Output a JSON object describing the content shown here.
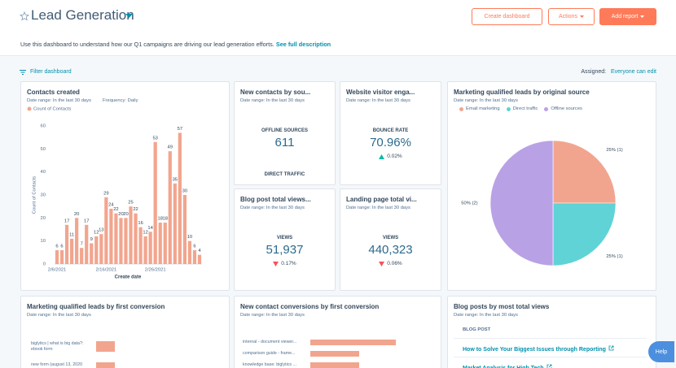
{
  "header": {
    "title": "Lead Generation",
    "buttons": [
      "Create dashboard",
      "Actions",
      "Add report"
    ],
    "description": "Use this dashboard to understand how our Q1 campaigns are driving our lead generation efforts.",
    "description_link": "See full description"
  },
  "toolbar": {
    "filter": "Filter dashboard",
    "assigned_label": "Assigned:",
    "assigned_value": "Everyone can edit"
  },
  "cards": [
    {
      "title": "Contacts created",
      "date_range": "Date range: In the last 30 days",
      "frequency": "Frequency: Daily",
      "chart_data": {
        "type": "bar",
        "categories": [
          "2/6/2021",
          null,
          null,
          null,
          null,
          null,
          null,
          null,
          null,
          null,
          "2/16/2021",
          null,
          null,
          null,
          null,
          null,
          null,
          null,
          null,
          null,
          "2/26/2021",
          null,
          null,
          null,
          null,
          null,
          null,
          null,
          null,
          null
        ],
        "series": [
          {
            "name": "Count of Contacts",
            "color": "#f2a58e",
            "values": [
              6,
              6,
              17,
              11,
              20,
              7,
              17,
              9,
              12,
              13,
              29,
              24,
              22,
              20,
              20,
              25,
              22,
              16,
              12,
              14,
              53,
              18,
              18,
              49,
              35,
              57,
              30,
              10,
              6,
              4
            ]
          }
        ],
        "ylabel": "Count of Contacts",
        "xlabel": "Create date",
        "ylim": [
          0,
          60
        ],
        "yticks": [
          0,
          10,
          20,
          30,
          40,
          50,
          60
        ]
      }
    },
    {
      "title": "New contacts by sou...",
      "date_range": "Date range: In the last 30 days",
      "metric": "OFFLINE SOURCES",
      "value": "611",
      "footer": "DIRECT TRAFFIC"
    },
    {
      "title": "Website visitor enga...",
      "date_range": "Date range: In the last 30 days",
      "metric": "BOUNCE RATE",
      "value": "70.96%",
      "change": "0.02%",
      "direction": "up"
    },
    {
      "title": "Blog post total views...",
      "date_range": "Date range: In the last 30 days",
      "metric": "VIEWS",
      "value": "51,937",
      "change": "0.17%",
      "direction": "down"
    },
    {
      "title": "Landing page total vi...",
      "date_range": "Date range: In the last 30 days",
      "metric": "VIEWS",
      "value": "440,323",
      "change": "0.06%",
      "direction": "down"
    },
    {
      "title": "Marketing qualified leads by original source",
      "date_range": "Date range: In the last 30 days",
      "chart_data": {
        "type": "pie",
        "categories": [
          "Email marketing",
          "Direct traffic",
          "Offline sources"
        ],
        "values": [
          1,
          1,
          2
        ],
        "value_labels": [
          "25% (1)",
          "25% (1)",
          "50% (2)"
        ],
        "colors": [
          "#f2a58e",
          "#5fd3d6",
          "#b9a1e6"
        ]
      }
    },
    {
      "title": "Marketing qualified leads by first conversion",
      "date_range": "Date range: In the last 30 days",
      "chart_data": {
        "type": "hbar",
        "categories": [
          "biglytics | what is big data?: ebook form",
          "new form (august 13, 2020"
        ],
        "values": [
          1,
          1
        ],
        "color": "#f2a58e"
      }
    },
    {
      "title": "New contact conversions by first conversion",
      "date_range": "Date range: In the last 30 days",
      "chart_data": {
        "type": "hbar",
        "categories": [
          "internal - document viewer...",
          "comparison guide - frame...",
          "knowledge base: biglytics ..."
        ],
        "values": [
          7,
          4,
          4
        ],
        "color": "#f2a58e"
      }
    },
    {
      "title": "Blog posts by most total views",
      "date_range": "Date range: In the last 30 days",
      "column": "BLOG POST",
      "rows": [
        "How to Solve Your Biggest Issues through Reporting",
        "Market Analysis for High Tech"
      ]
    }
  ],
  "help": "Help"
}
